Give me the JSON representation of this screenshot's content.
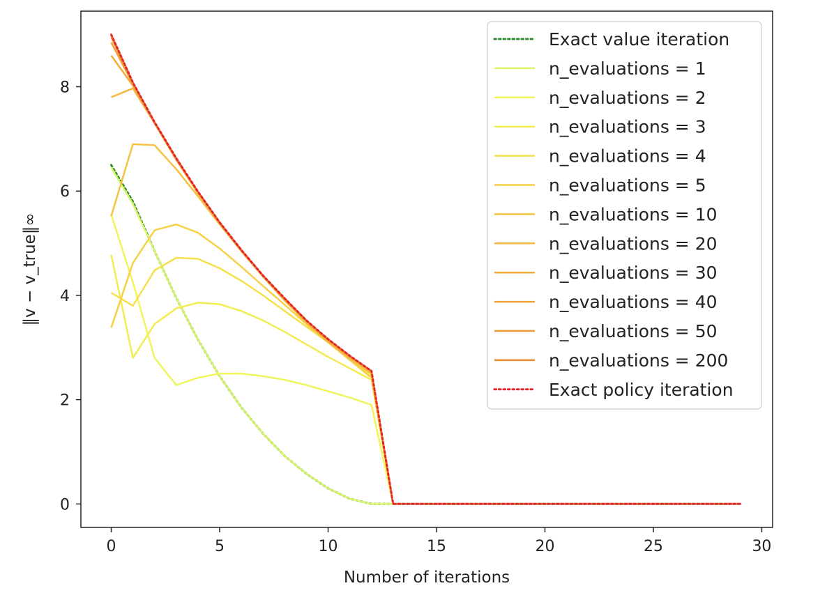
{
  "chart_data": {
    "type": "line",
    "title": "",
    "xlabel": "Number of iterations",
    "ylabel": "‖v − v_true‖∞",
    "xlim": [
      -1.4,
      30.5
    ],
    "ylim": [
      -0.45,
      9.45
    ],
    "xticks": [
      0,
      5,
      10,
      15,
      20,
      25,
      30
    ],
    "yticks": [
      0,
      2,
      4,
      6,
      8
    ],
    "legend_position": "upper-right",
    "series": [
      {
        "name": "Exact value iteration",
        "style": "dotted",
        "color": "#2e8b2e",
        "x": [
          0,
          1,
          2,
          3,
          4,
          5,
          6,
          7,
          8,
          9,
          10,
          11,
          12,
          13,
          14,
          15,
          16,
          17,
          18,
          19,
          20,
          21,
          22,
          23,
          24,
          25,
          26,
          27,
          28,
          29
        ],
        "y": [
          6.5,
          5.8,
          4.85,
          3.95,
          3.15,
          2.45,
          1.85,
          1.35,
          0.92,
          0.58,
          0.3,
          0.1,
          0.0,
          0,
          0,
          0,
          0,
          0,
          0,
          0,
          0,
          0,
          0,
          0,
          0,
          0,
          0,
          0,
          0,
          0
        ]
      },
      {
        "name": "n_evaluations = 1",
        "style": "solid",
        "color": "#d9f56a",
        "x": [
          0,
          1,
          2,
          3,
          4,
          5,
          6,
          7,
          8,
          9,
          10,
          11,
          12,
          13,
          14,
          15,
          16,
          17,
          18,
          19,
          20,
          21,
          22,
          23,
          24,
          25,
          26,
          27,
          28,
          29
        ],
        "y": [
          6.45,
          5.75,
          4.85,
          3.95,
          3.15,
          2.45,
          1.85,
          1.35,
          0.92,
          0.58,
          0.3,
          0.1,
          0.0,
          0,
          0,
          0,
          0,
          0,
          0,
          0,
          0,
          0,
          0,
          0,
          0,
          0,
          0,
          0,
          0,
          0
        ]
      },
      {
        "name": "n_evaluations = 2",
        "style": "solid",
        "color": "#eff55a",
        "x": [
          0,
          1,
          2,
          3,
          4,
          5,
          6,
          7,
          8,
          9,
          10,
          11,
          12,
          13,
          14,
          15,
          16,
          17,
          18,
          19,
          20,
          21,
          22,
          23,
          24,
          25,
          26,
          27,
          28,
          29
        ],
        "y": [
          5.55,
          4.25,
          2.8,
          2.28,
          2.42,
          2.5,
          2.5,
          2.45,
          2.38,
          2.28,
          2.16,
          2.04,
          1.9,
          0,
          0,
          0,
          0,
          0,
          0,
          0,
          0,
          0,
          0,
          0,
          0,
          0,
          0,
          0,
          0,
          0
        ]
      },
      {
        "name": "n_evaluations = 3",
        "style": "solid",
        "color": "#f2ec50",
        "x": [
          0,
          1,
          2,
          3,
          4,
          5,
          6,
          7,
          8,
          9,
          10,
          11,
          12,
          13,
          14,
          15,
          16,
          17,
          18,
          19,
          20,
          21,
          22,
          23,
          24,
          25,
          26,
          27,
          28,
          29
        ],
        "y": [
          4.78,
          2.8,
          3.45,
          3.75,
          3.86,
          3.83,
          3.7,
          3.52,
          3.3,
          3.06,
          2.82,
          2.6,
          2.38,
          0,
          0,
          0,
          0,
          0,
          0,
          0,
          0,
          0,
          0,
          0,
          0,
          0,
          0,
          0,
          0,
          0
        ]
      },
      {
        "name": "n_evaluations = 4",
        "style": "solid",
        "color": "#f5e04a",
        "x": [
          0,
          1,
          2,
          3,
          4,
          5,
          6,
          7,
          8,
          9,
          10,
          11,
          12,
          13,
          14,
          15,
          16,
          17,
          18,
          19,
          20,
          21,
          22,
          23,
          24,
          25,
          26,
          27,
          28,
          29
        ],
        "y": [
          4.05,
          3.8,
          4.48,
          4.72,
          4.7,
          4.52,
          4.28,
          4.0,
          3.7,
          3.4,
          3.1,
          2.78,
          2.45,
          0,
          0,
          0,
          0,
          0,
          0,
          0,
          0,
          0,
          0,
          0,
          0,
          0,
          0,
          0,
          0,
          0
        ]
      },
      {
        "name": "n_evaluations = 5",
        "style": "solid",
        "color": "#f6d145",
        "x": [
          0,
          1,
          2,
          3,
          4,
          5,
          6,
          7,
          8,
          9,
          10,
          11,
          12,
          13,
          14,
          15,
          16,
          17,
          18,
          19,
          20,
          21,
          22,
          23,
          24,
          25,
          26,
          27,
          28,
          29
        ],
        "y": [
          3.38,
          4.62,
          5.25,
          5.36,
          5.2,
          4.9,
          4.55,
          4.18,
          3.82,
          3.45,
          3.1,
          2.76,
          2.42,
          0,
          0,
          0,
          0,
          0,
          0,
          0,
          0,
          0,
          0,
          0,
          0,
          0,
          0,
          0,
          0,
          0
        ]
      },
      {
        "name": "n_evaluations = 10",
        "style": "solid",
        "color": "#f5c242",
        "x": [
          0,
          1,
          2,
          3,
          4,
          5,
          6,
          7,
          8,
          9,
          10,
          11,
          12,
          13,
          14,
          15,
          16,
          17,
          18,
          19,
          20,
          21,
          22,
          23,
          24,
          25,
          26,
          27,
          28,
          29
        ],
        "y": [
          5.52,
          6.9,
          6.88,
          6.42,
          5.9,
          5.36,
          4.85,
          4.36,
          3.9,
          3.48,
          3.1,
          2.78,
          2.5,
          0,
          0,
          0,
          0,
          0,
          0,
          0,
          0,
          0,
          0,
          0,
          0,
          0,
          0,
          0,
          0,
          0
        ]
      },
      {
        "name": "n_evaluations = 20",
        "style": "solid",
        "color": "#f4b73f",
        "x": [
          0,
          1,
          2,
          3,
          4,
          5,
          6,
          7,
          8,
          9,
          10,
          11,
          12,
          13,
          14,
          15,
          16,
          17,
          18,
          19,
          20,
          21,
          22,
          23,
          24,
          25,
          26,
          27,
          28,
          29
        ],
        "y": [
          7.8,
          7.97,
          7.3,
          6.6,
          5.96,
          5.38,
          4.85,
          4.36,
          3.9,
          3.48,
          3.12,
          2.8,
          2.52,
          0,
          0,
          0,
          0,
          0,
          0,
          0,
          0,
          0,
          0,
          0,
          0,
          0,
          0,
          0,
          0,
          0
        ]
      },
      {
        "name": "n_evaluations = 30",
        "style": "solid",
        "color": "#f3ac3c",
        "x": [
          0,
          1,
          2,
          3,
          4,
          5,
          6,
          7,
          8,
          9,
          10,
          11,
          12,
          13,
          14,
          15,
          16,
          17,
          18,
          19,
          20,
          21,
          22,
          23,
          24,
          25,
          26,
          27,
          28,
          29
        ],
        "y": [
          8.6,
          8.02,
          7.3,
          6.6,
          5.96,
          5.38,
          4.85,
          4.36,
          3.92,
          3.5,
          3.14,
          2.82,
          2.54,
          0,
          0,
          0,
          0,
          0,
          0,
          0,
          0,
          0,
          0,
          0,
          0,
          0,
          0,
          0,
          0,
          0
        ]
      },
      {
        "name": "n_evaluations = 40",
        "style": "solid",
        "color": "#f1a239",
        "x": [
          0,
          1,
          2,
          3,
          4,
          5,
          6,
          7,
          8,
          9,
          10,
          11,
          12,
          13,
          14,
          15,
          16,
          17,
          18,
          19,
          20,
          21,
          22,
          23,
          24,
          25,
          26,
          27,
          28,
          29
        ],
        "y": [
          8.85,
          8.05,
          7.3,
          6.62,
          5.97,
          5.39,
          4.86,
          4.37,
          3.93,
          3.51,
          3.15,
          2.83,
          2.55,
          0,
          0,
          0,
          0,
          0,
          0,
          0,
          0,
          0,
          0,
          0,
          0,
          0,
          0,
          0,
          0,
          0
        ]
      },
      {
        "name": "n_evaluations = 50",
        "style": "solid",
        "color": "#ee9a36",
        "x": [
          0,
          1,
          2,
          3,
          4,
          5,
          6,
          7,
          8,
          9,
          10,
          11,
          12,
          13,
          14,
          15,
          16,
          17,
          18,
          19,
          20,
          21,
          22,
          23,
          24,
          25,
          26,
          27,
          28,
          29
        ],
        "y": [
          8.95,
          8.07,
          7.31,
          6.62,
          5.98,
          5.4,
          4.86,
          4.37,
          3.93,
          3.52,
          3.15,
          2.83,
          2.55,
          0,
          0,
          0,
          0,
          0,
          0,
          0,
          0,
          0,
          0,
          0,
          0,
          0,
          0,
          0,
          0,
          0
        ]
      },
      {
        "name": "n_evaluations = 200",
        "style": "solid",
        "color": "#e98a30",
        "x": [
          0,
          1,
          2,
          3,
          4,
          5,
          6,
          7,
          8,
          9,
          10,
          11,
          12,
          13,
          14,
          15,
          16,
          17,
          18,
          19,
          20,
          21,
          22,
          23,
          24,
          25,
          26,
          27,
          28,
          29
        ],
        "y": [
          9.0,
          8.08,
          7.32,
          6.63,
          5.99,
          5.4,
          4.87,
          4.38,
          3.94,
          3.52,
          3.16,
          2.84,
          2.55,
          0,
          0,
          0,
          0,
          0,
          0,
          0,
          0,
          0,
          0,
          0,
          0,
          0,
          0,
          0,
          0,
          0
        ]
      },
      {
        "name": "Exact policy iteration",
        "style": "dotted",
        "color": "#e3242b",
        "x": [
          0,
          1,
          2,
          3,
          4,
          5,
          6,
          7,
          8,
          9,
          10,
          11,
          12,
          13,
          14,
          15,
          16,
          17,
          18,
          19,
          20,
          21,
          22,
          23,
          24,
          25,
          26,
          27,
          28,
          29
        ],
        "y": [
          9.0,
          8.08,
          7.32,
          6.63,
          5.99,
          5.4,
          4.87,
          4.38,
          3.94,
          3.52,
          3.16,
          2.84,
          2.55,
          0,
          0,
          0,
          0,
          0,
          0,
          0,
          0,
          0,
          0,
          0,
          0,
          0,
          0,
          0,
          0,
          0
        ]
      }
    ]
  }
}
